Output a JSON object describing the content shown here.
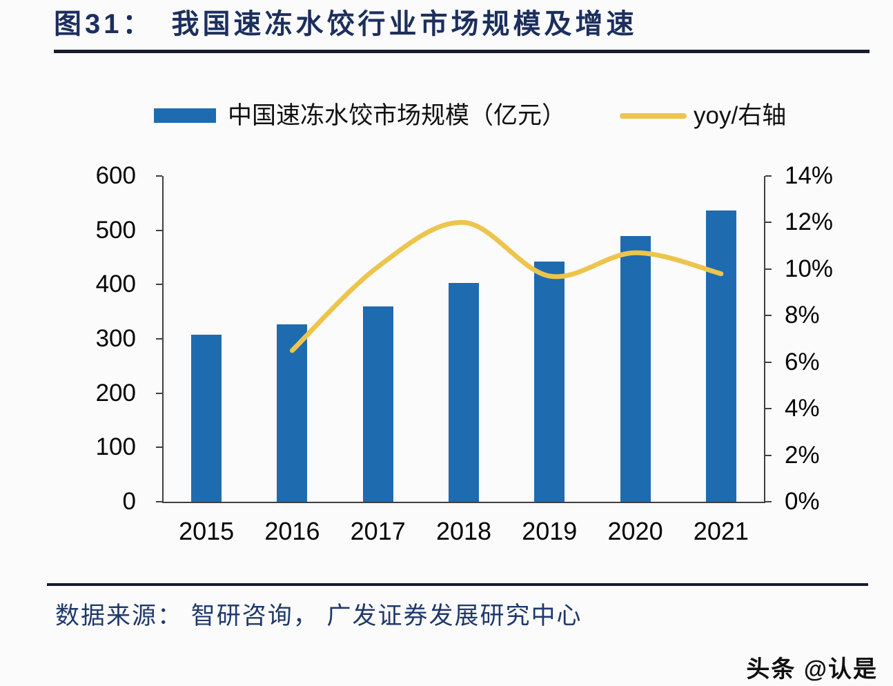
{
  "title": {
    "prefix": "图31：",
    "text": "我国速冻水饺行业市场规模及增速"
  },
  "legend": {
    "bar": {
      "label": "中国速冻水饺市场规模（亿元）"
    },
    "line": {
      "label": "yoy/右轴"
    }
  },
  "source": "数据来源： 智研咨询， 广发证券发展研究中心",
  "watermark": "头条 @认是",
  "colors": {
    "bar": "#1f6bb0",
    "line": "#edc44d",
    "title": "#1c2f5e",
    "axis": "#3f3f3f",
    "rule": "#171d30",
    "source_text": "#20396b"
  },
  "chart_data": {
    "type": "bar",
    "categories": [
      "2015",
      "2016",
      "2017",
      "2018",
      "2019",
      "2020",
      "2021"
    ],
    "series": [
      {
        "name": "中国速冻水饺市场规模（亿元）",
        "type": "bar",
        "axis": "left",
        "values": [
          307,
          327,
          360,
          403,
          442,
          489,
          537
        ]
      },
      {
        "name": "yoy/右轴",
        "type": "line",
        "axis": "right",
        "unit": "%",
        "values": [
          null,
          6.5,
          10.1,
          12.0,
          9.7,
          10.7,
          9.8
        ]
      }
    ],
    "left_axis": {
      "min": 0,
      "max": 600,
      "step": 100,
      "labels": [
        "0",
        "100",
        "200",
        "300",
        "400",
        "500",
        "600"
      ]
    },
    "right_axis": {
      "min": 0,
      "max": 14,
      "step": 2,
      "labels": [
        "0%",
        "2%",
        "4%",
        "6%",
        "8%",
        "10%",
        "12%",
        "14%"
      ]
    },
    "grid": false,
    "legend_position": "top",
    "title": "我国速冻水饺行业市场规模及增速"
  }
}
